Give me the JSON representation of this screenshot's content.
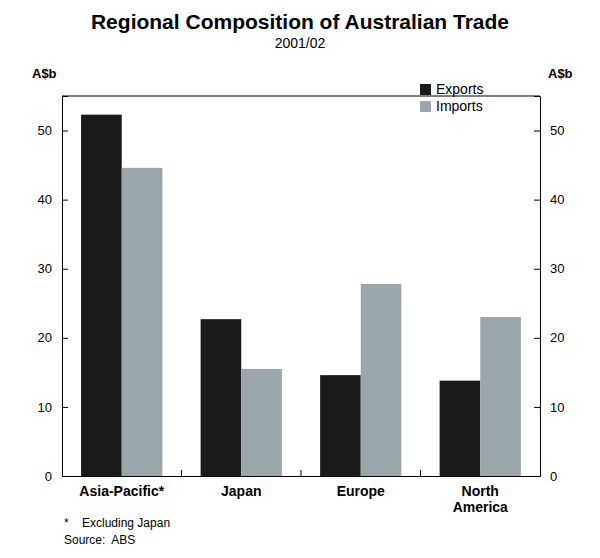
{
  "chart_data": {
    "type": "bar",
    "title": "Regional Composition of Australian Trade",
    "subtitle": "2001/02",
    "ylabel": "A$b",
    "y2label": "A$b",
    "categories": [
      "Asia-Pacific*",
      "Japan",
      "Europe",
      "North America"
    ],
    "series": [
      {
        "name": "Exports",
        "color": "#1a1a1a",
        "values": [
          52.3,
          22.7,
          14.6,
          13.8
        ]
      },
      {
        "name": "Imports",
        "color": "#9aa6ab",
        "values": [
          44.6,
          15.5,
          27.8,
          23.0
        ]
      }
    ],
    "ylim": [
      0,
      55
    ],
    "yticks": [
      0,
      10,
      20,
      30,
      40,
      50
    ],
    "y2lim": [
      0,
      55
    ],
    "y2ticks": [
      0,
      10,
      20,
      30,
      40,
      50
    ],
    "grid": false,
    "legend": "top-right",
    "footnote": "*    Excluding Japan",
    "source": "Source:  ABS"
  }
}
